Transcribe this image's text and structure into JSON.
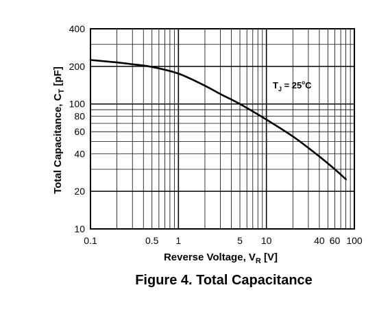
{
  "figure_caption": "Figure 4. Total Capacitance",
  "chart_data": {
    "type": "line",
    "title": "",
    "xlabel": "Reverse Voltage, VR [V]",
    "xlabel_parts": {
      "main": "Reverse Voltage, V",
      "sub": "R",
      "tail": " [V]"
    },
    "ylabel": "Total Capacitance, CT [pF]",
    "ylabel_parts": {
      "main": "Total Capacitance, C",
      "sub": "T",
      "tail": " [pF]"
    },
    "x_scale": "log",
    "y_scale": "log",
    "xlim": [
      0.1,
      100
    ],
    "ylim": [
      10,
      400
    ],
    "grid": true,
    "x_tick_labels": [
      {
        "value": 0.1,
        "label": "0.1"
      },
      {
        "value": 0.5,
        "label": "0.5"
      },
      {
        "value": 1,
        "label": "1"
      },
      {
        "value": 5,
        "label": "5"
      },
      {
        "value": 10,
        "label": "10"
      },
      {
        "value": 40,
        "label": "40"
      },
      {
        "value": 60,
        "label": "60"
      },
      {
        "value": 100,
        "label": "100"
      }
    ],
    "y_tick_labels": [
      {
        "value": 10,
        "label": "10"
      },
      {
        "value": 20,
        "label": "20"
      },
      {
        "value": 40,
        "label": "40"
      },
      {
        "value": 60,
        "label": "60"
      },
      {
        "value": 80,
        "label": "80"
      },
      {
        "value": 100,
        "label": "100"
      },
      {
        "value": 200,
        "label": "200"
      },
      {
        "value": 400,
        "label": "400"
      }
    ],
    "annotation": {
      "text": "TJ = 25°C",
      "main": "T",
      "sub": "J",
      "mid": " = 25",
      "sup": "o",
      "tail": "C",
      "position": "upper-right"
    },
    "series": [
      {
        "values": [
          {
            "x": 0.1,
            "y": 225
          },
          {
            "x": 0.2,
            "y": 215
          },
          {
            "x": 0.3,
            "y": 208
          },
          {
            "x": 0.5,
            "y": 198
          },
          {
            "x": 1,
            "y": 175
          },
          {
            "x": 2,
            "y": 140
          },
          {
            "x": 3,
            "y": 120
          },
          {
            "x": 5,
            "y": 100
          },
          {
            "x": 10,
            "y": 75
          },
          {
            "x": 20,
            "y": 55
          },
          {
            "x": 40,
            "y": 38
          },
          {
            "x": 60,
            "y": 30
          },
          {
            "x": 80,
            "y": 25
          }
        ]
      }
    ]
  }
}
